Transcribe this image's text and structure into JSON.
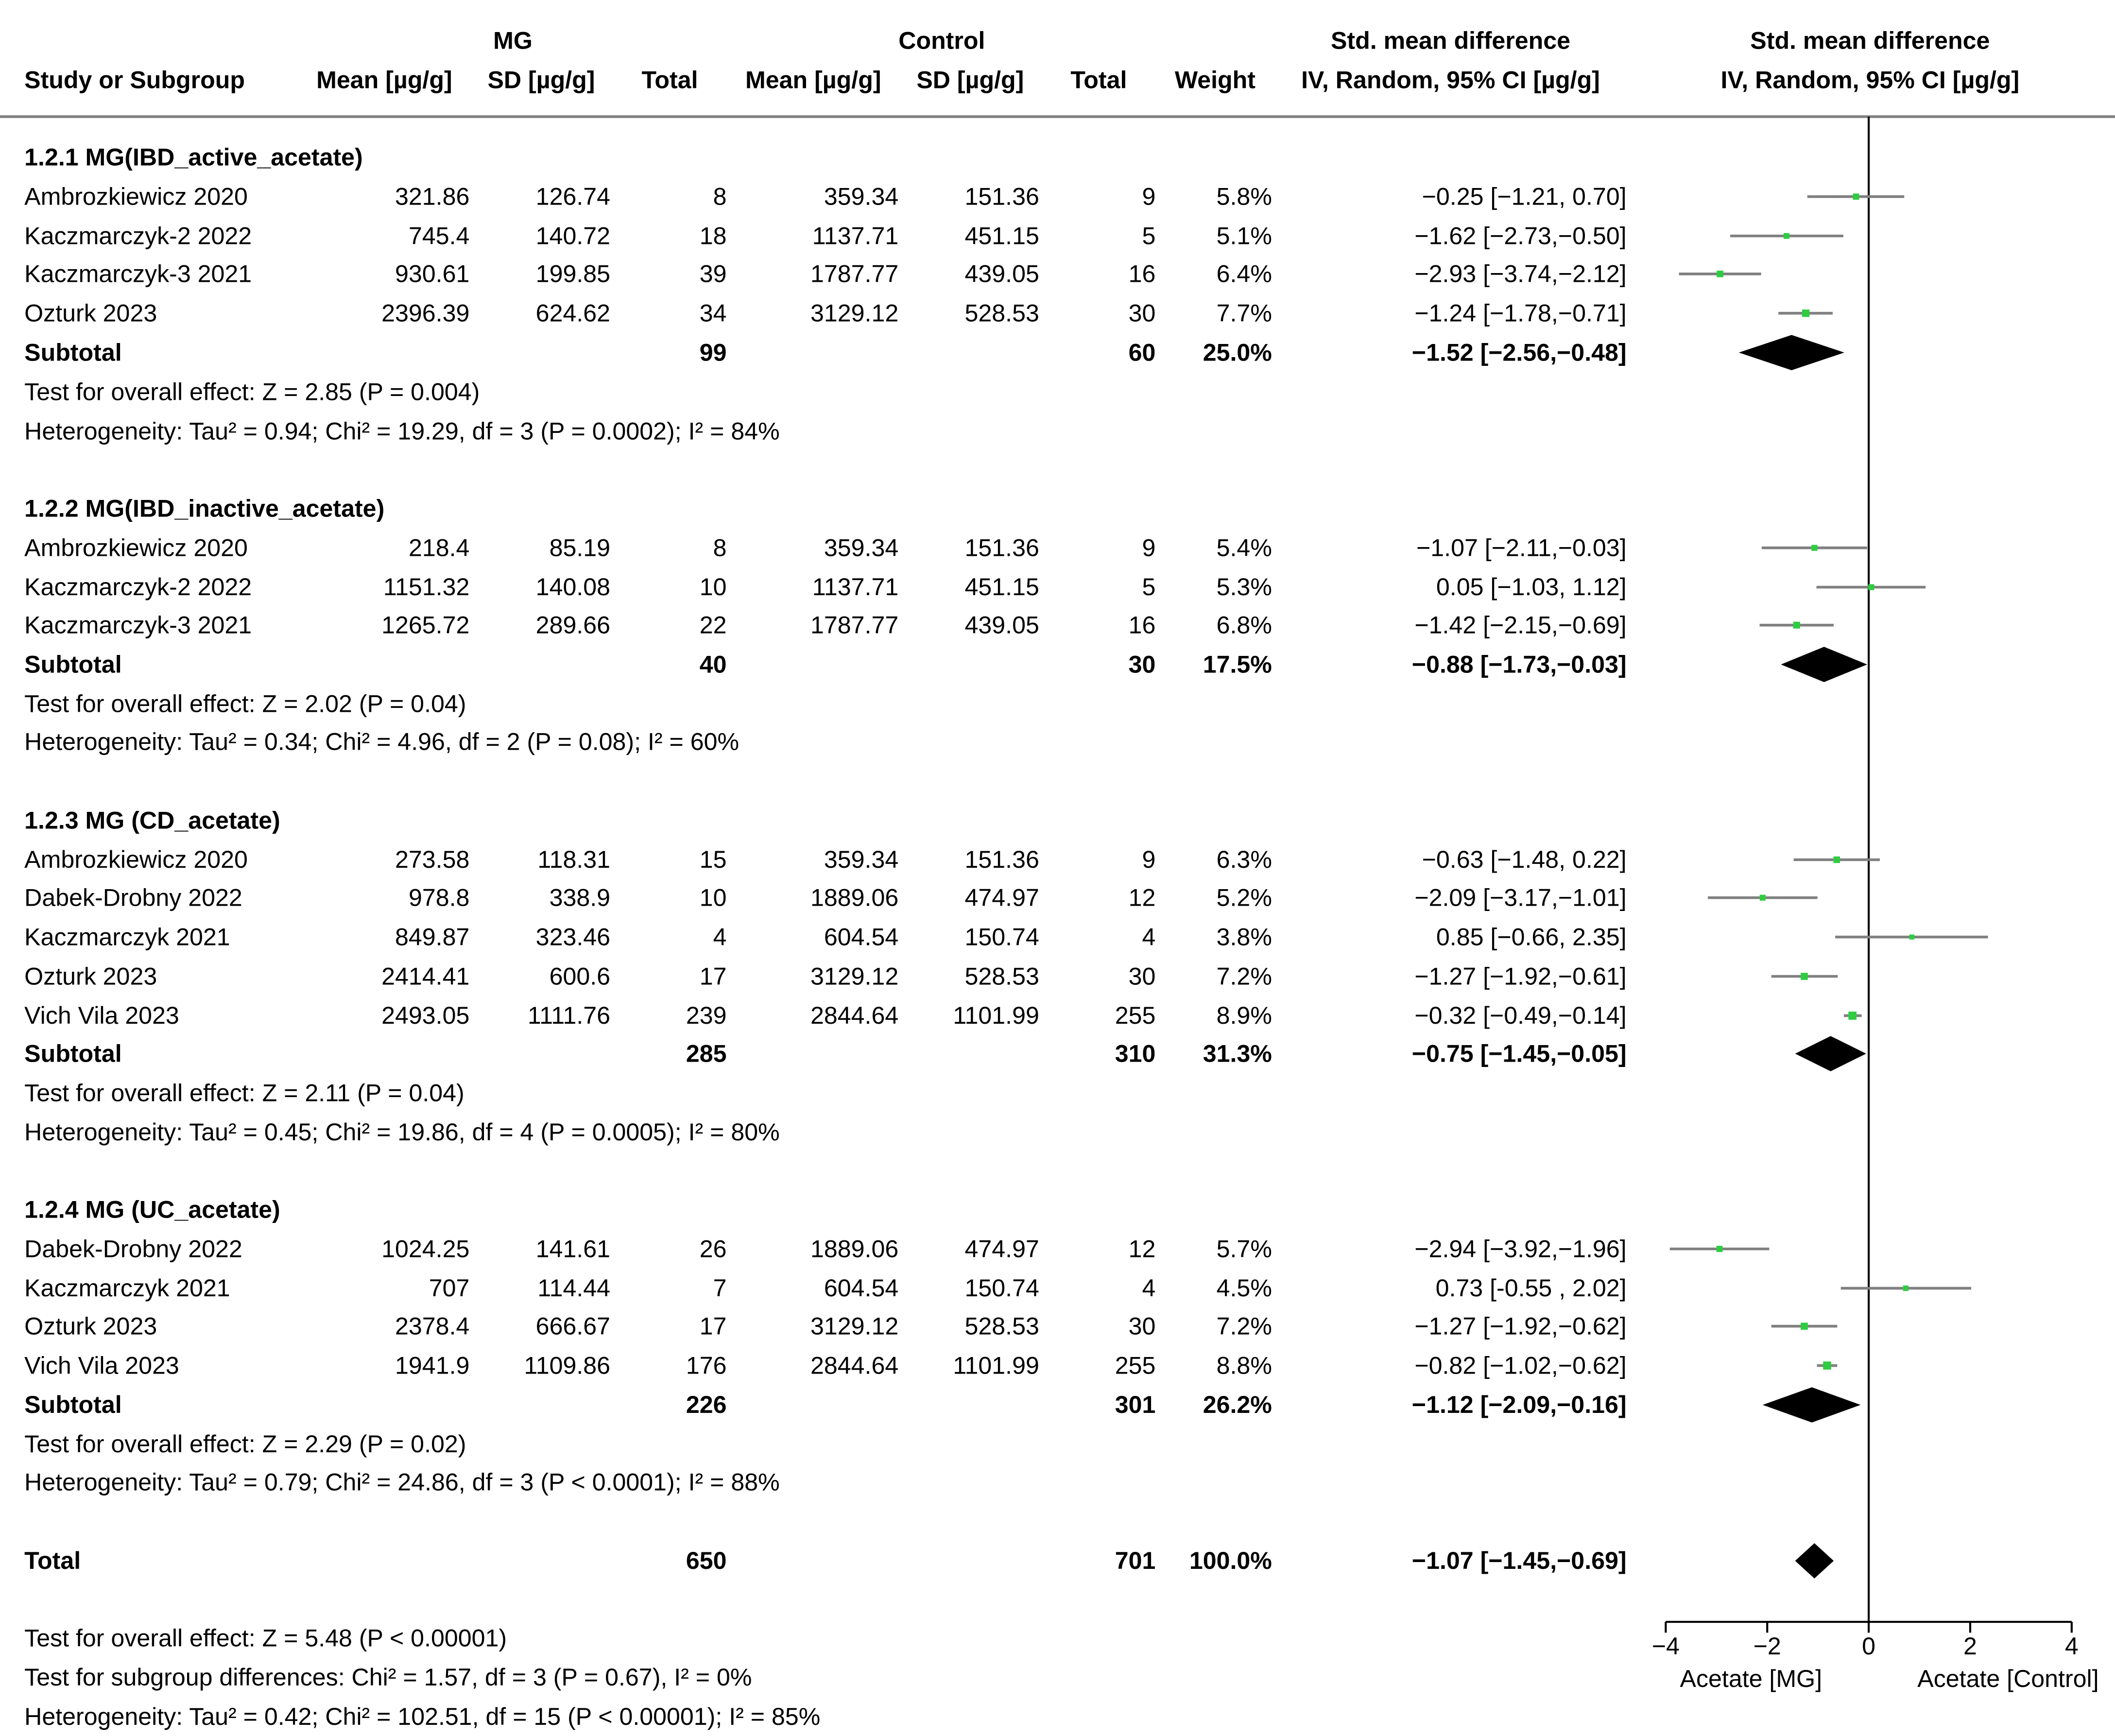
{
  "headers": {
    "group_mg": "MG",
    "group_control": "Control",
    "study": "Study or Subgroup",
    "mg_mean": "Mean [µg/g]",
    "mg_sd": "SD [µg/g]",
    "mg_total": "Total",
    "ctrl_mean": "Mean [µg/g]",
    "ctrl_sd": "SD [µg/g]",
    "ctrl_total": "Total",
    "weight": "Weight",
    "smd_top": "Std. mean difference",
    "smd_sub": "IV, Random, 95% CI [µg/g]",
    "plot_top": "Std. mean difference",
    "plot_sub": "IV, Random, 95% CI [µg/g]"
  },
  "groups": [
    {
      "title": "1.2.1 MG(IBD_active_acetate)",
      "studies": [
        {
          "name": "Ambrozkiewicz 2020",
          "mg_mean": "321.86",
          "mg_sd": "126.74",
          "mg_n": "8",
          "c_mean": "359.34",
          "c_sd": "151.36",
          "c_n": "9",
          "weight": "5.8%",
          "ci_text": "−0.25 [−1.21, 0.70]"
        },
        {
          "name": "Kaczmarczyk-2 2022",
          "mg_mean": "745.4",
          "mg_sd": "140.72",
          "mg_n": "18",
          "c_mean": "1137.71",
          "c_sd": "451.15",
          "c_n": "5",
          "weight": "5.1%",
          "ci_text": "−1.62 [−2.73,−0.50]"
        },
        {
          "name": "Kaczmarczyk-3 2021",
          "mg_mean": "930.61",
          "mg_sd": "199.85",
          "mg_n": "39",
          "c_mean": "1787.77",
          "c_sd": "439.05",
          "c_n": "16",
          "weight": "6.4%",
          "ci_text": "−2.93 [−3.74,−2.12]"
        },
        {
          "name": "Ozturk 2023",
          "mg_mean": "2396.39",
          "mg_sd": "624.62",
          "mg_n": "34",
          "c_mean": "3129.12",
          "c_sd": "528.53",
          "c_n": "30",
          "weight": "7.7%",
          "ci_text": "−1.24 [−1.78,−0.71]"
        }
      ],
      "subtotal": {
        "label": "Subtotal",
        "mg_n": "99",
        "c_n": "60",
        "weight": "25.0%",
        "ci_text": "−1.52 [−2.56,−0.48]"
      },
      "test": "Test for overall effect: Z = 2.85 (P = 0.004)",
      "heterogeneity": "Heterogeneity: Tau² = 0.94; Chi² = 19.29, df = 3 (P = 0.0002); I² = 84%"
    },
    {
      "title": "1.2.2 MG(IBD_inactive_acetate)",
      "studies": [
        {
          "name": "Ambrozkiewicz 2020",
          "mg_mean": "218.4",
          "mg_sd": "85.19",
          "mg_n": "8",
          "c_mean": "359.34",
          "c_sd": "151.36",
          "c_n": "9",
          "weight": "5.4%",
          "ci_text": "−1.07 [−2.11,−0.03]"
        },
        {
          "name": "Kaczmarczyk-2 2022",
          "mg_mean": "1151.32",
          "mg_sd": "140.08",
          "mg_n": "10",
          "c_mean": "1137.71",
          "c_sd": "451.15",
          "c_n": "5",
          "weight": "5.3%",
          "ci_text": "0.05 [−1.03, 1.12]"
        },
        {
          "name": "Kaczmarczyk-3 2021",
          "mg_mean": "1265.72",
          "mg_sd": "289.66",
          "mg_n": "22",
          "c_mean": "1787.77",
          "c_sd": "439.05",
          "c_n": "16",
          "weight": "6.8%",
          "ci_text": "−1.42 [−2.15,−0.69]"
        }
      ],
      "subtotal": {
        "label": "Subtotal",
        "mg_n": "40",
        "c_n": "30",
        "weight": "17.5%",
        "ci_text": "−0.88 [−1.73,−0.03]"
      },
      "test": "Test for overall effect: Z = 2.02 (P = 0.04)",
      "heterogeneity": "Heterogeneity: Tau² = 0.34; Chi² = 4.96, df = 2 (P = 0.08); I² = 60%"
    },
    {
      "title": "1.2.3 MG (CD_acetate)",
      "studies": [
        {
          "name": "Ambrozkiewicz 2020",
          "mg_mean": "273.58",
          "mg_sd": "118.31",
          "mg_n": "15",
          "c_mean": "359.34",
          "c_sd": "151.36",
          "c_n": "9",
          "weight": "6.3%",
          "ci_text": "−0.63 [−1.48, 0.22]"
        },
        {
          "name": "Dabek-Drobny 2022",
          "mg_mean": "978.8",
          "mg_sd": "338.9",
          "mg_n": "10",
          "c_mean": "1889.06",
          "c_sd": "474.97",
          "c_n": "12",
          "weight": "5.2%",
          "ci_text": "−2.09 [−3.17,−1.01]"
        },
        {
          "name": "Kaczmarczyk 2021",
          "mg_mean": "849.87",
          "mg_sd": "323.46",
          "mg_n": "4",
          "c_mean": "604.54",
          "c_sd": "150.74",
          "c_n": "4",
          "weight": "3.8%",
          "ci_text": "0.85 [−0.66, 2.35]"
        },
        {
          "name": "Ozturk 2023",
          "mg_mean": "2414.41",
          "mg_sd": "600.6",
          "mg_n": "17",
          "c_mean": "3129.12",
          "c_sd": "528.53",
          "c_n": "30",
          "weight": "7.2%",
          "ci_text": "−1.27 [−1.92,−0.61]"
        },
        {
          "name": "Vich Vila 2023",
          "mg_mean": "2493.05",
          "mg_sd": "1111.76",
          "mg_n": "239",
          "c_mean": "2844.64",
          "c_sd": "1101.99",
          "c_n": "255",
          "weight": "8.9%",
          "ci_text": "−0.32 [−0.49,−0.14]"
        }
      ],
      "subtotal": {
        "label": "Subtotal",
        "mg_n": "285",
        "c_n": "310",
        "weight": "31.3%",
        "ci_text": "−0.75 [−1.45,−0.05]"
      },
      "test": "Test for overall effect: Z = 2.11 (P = 0.04)",
      "heterogeneity": "Heterogeneity: Tau² = 0.45; Chi² = 19.86, df = 4 (P = 0.0005); I² = 80%"
    },
    {
      "title": "1.2.4 MG (UC_acetate)",
      "studies": [
        {
          "name": "Dabek-Drobny 2022",
          "mg_mean": "1024.25",
          "mg_sd": "141.61",
          "mg_n": "26",
          "c_mean": "1889.06",
          "c_sd": "474.97",
          "c_n": "12",
          "weight": "5.7%",
          "ci_text": "−2.94 [−3.92,−1.96]"
        },
        {
          "name": "Kaczmarczyk 2021",
          "mg_mean": "707",
          "mg_sd": "114.44",
          "mg_n": "7",
          "c_mean": "604.54",
          "c_sd": "150.74",
          "c_n": "4",
          "weight": "4.5%",
          "ci_text": "0.73 [-0.55 , 2.02]"
        },
        {
          "name": "Ozturk 2023",
          "mg_mean": "2378.4",
          "mg_sd": "666.67",
          "mg_n": "17",
          "c_mean": "3129.12",
          "c_sd": "528.53",
          "c_n": "30",
          "weight": "7.2%",
          "ci_text": "−1.27 [−1.92,−0.62]"
        },
        {
          "name": "Vich Vila 2023",
          "mg_mean": "1941.9",
          "mg_sd": "1109.86",
          "mg_n": "176",
          "c_mean": "2844.64",
          "c_sd": "1101.99",
          "c_n": "255",
          "weight": "8.8%",
          "ci_text": "−0.82 [−1.02,−0.62]"
        }
      ],
      "subtotal": {
        "label": "Subtotal",
        "mg_n": "226",
        "c_n": "301",
        "weight": "26.2%",
        "ci_text": "−1.12 [−2.09,−0.16]"
      },
      "test": "Test for overall effect: Z = 2.29 (P = 0.02)",
      "heterogeneity": "Heterogeneity: Tau² = 0.79; Chi² = 24.86, df = 3 (P < 0.0001); I² = 88%"
    }
  ],
  "total": {
    "label": "Total",
    "mg_n": "650",
    "c_n": "701",
    "weight": "100.0%",
    "ci_text": "−1.07 [−1.45,−0.69]"
  },
  "footer": {
    "overall": "Test for overall effect: Z = 5.48 (P < 0.00001)",
    "subgroup": "Test for subgroup differences: Chi² = 1.57, df = 3 (P = 0.67), I² = 0%",
    "heterogeneity": "Heterogeneity: Tau² = 0.42; Chi² = 102.51, df = 15 (P < 0.00001); I² = 85%"
  },
  "axis": {
    "ticks": [
      -4,
      -2,
      0,
      2,
      4
    ],
    "tick_labels": [
      "−4",
      "−2",
      "0",
      "2",
      "4"
    ],
    "left_label": "Acetate [MG]",
    "right_label": "Acetate [Control]"
  },
  "colors": {
    "point": "#2ecc40",
    "ci_line": "#808080",
    "diamond": "#000000",
    "axis": "#000000"
  },
  "chart_data": {
    "type": "forest",
    "x_range": [
      -4,
      4
    ],
    "null_line": 0,
    "groups": [
      {
        "name": "1.2.1 MG(IBD_active_acetate)",
        "studies": [
          {
            "name": "Ambrozkiewicz 2020",
            "est": -0.25,
            "lo": -1.21,
            "hi": 0.7,
            "weight": 5.8
          },
          {
            "name": "Kaczmarczyk-2 2022",
            "est": -1.62,
            "lo": -2.73,
            "hi": -0.5,
            "weight": 5.1
          },
          {
            "name": "Kaczmarczyk-3 2021",
            "est": -2.93,
            "lo": -3.74,
            "hi": -2.12,
            "weight": 6.4
          },
          {
            "name": "Ozturk 2023",
            "est": -1.24,
            "lo": -1.78,
            "hi": -0.71,
            "weight": 7.7
          }
        ],
        "subtotal": {
          "est": -1.52,
          "lo": -2.56,
          "hi": -0.48
        }
      },
      {
        "name": "1.2.2 MG(IBD_inactive_acetate)",
        "studies": [
          {
            "name": "Ambrozkiewicz 2020",
            "est": -1.07,
            "lo": -2.11,
            "hi": -0.03,
            "weight": 5.4
          },
          {
            "name": "Kaczmarczyk-2 2022",
            "est": 0.05,
            "lo": -1.03,
            "hi": 1.12,
            "weight": 5.3
          },
          {
            "name": "Kaczmarczyk-3 2021",
            "est": -1.42,
            "lo": -2.15,
            "hi": -0.69,
            "weight": 6.8
          }
        ],
        "subtotal": {
          "est": -0.88,
          "lo": -1.73,
          "hi": -0.03
        }
      },
      {
        "name": "1.2.3 MG (CD_acetate)",
        "studies": [
          {
            "name": "Ambrozkiewicz 2020",
            "est": -0.63,
            "lo": -1.48,
            "hi": 0.22,
            "weight": 6.3
          },
          {
            "name": "Dabek-Drobny 2022",
            "est": -2.09,
            "lo": -3.17,
            "hi": -1.01,
            "weight": 5.2
          },
          {
            "name": "Kaczmarczyk 2021",
            "est": 0.85,
            "lo": -0.66,
            "hi": 2.35,
            "weight": 3.8
          },
          {
            "name": "Ozturk 2023",
            "est": -1.27,
            "lo": -1.92,
            "hi": -0.61,
            "weight": 7.2
          },
          {
            "name": "Vich Vila 2023",
            "est": -0.32,
            "lo": -0.49,
            "hi": -0.14,
            "weight": 8.9
          }
        ],
        "subtotal": {
          "est": -0.75,
          "lo": -1.45,
          "hi": -0.05
        }
      },
      {
        "name": "1.2.4 MG (UC_acetate)",
        "studies": [
          {
            "name": "Dabek-Drobny 2022",
            "est": -2.94,
            "lo": -3.92,
            "hi": -1.96,
            "weight": 5.7
          },
          {
            "name": "Kaczmarczyk 2021",
            "est": 0.73,
            "lo": -0.55,
            "hi": 2.02,
            "weight": 4.5
          },
          {
            "name": "Ozturk 2023",
            "est": -1.27,
            "lo": -1.92,
            "hi": -0.62,
            "weight": 7.2
          },
          {
            "name": "Vich Vila 2023",
            "est": -0.82,
            "lo": -1.02,
            "hi": -0.62,
            "weight": 8.8
          }
        ],
        "subtotal": {
          "est": -1.12,
          "lo": -2.09,
          "hi": -0.16
        }
      }
    ],
    "total": {
      "est": -1.07,
      "lo": -1.45,
      "hi": -0.69
    }
  }
}
